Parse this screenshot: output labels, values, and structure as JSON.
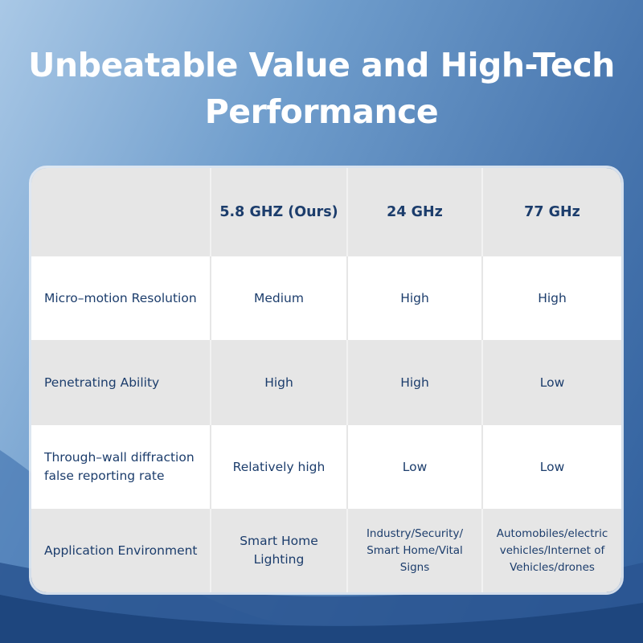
{
  "title": "Unbeatable Value and High-Tech Performance",
  "table": {
    "header": [
      "5.8 GHZ (Ours)",
      "24 GHz",
      "77 GHz"
    ],
    "rows": [
      [
        "Micro–motion Resolution",
        "Medium",
        "High",
        "High"
      ],
      [
        "Penetrating Ability",
        "High",
        "High",
        "Low"
      ],
      [
        "Through–wall diffraction false reporting rate",
        "Relatively high",
        "Low",
        "Low"
      ],
      [
        "Application Environment",
        "Smart Home Lighting",
        "Industry/Security/ Smart Home/Vital Signs",
        "Automobiles/electric vehicles/Internet of Vehicles/drones"
      ]
    ]
  }
}
